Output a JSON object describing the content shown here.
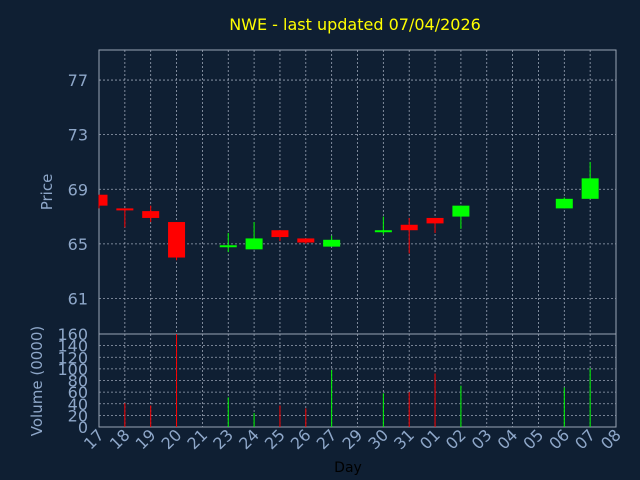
{
  "chart_data": {
    "type": "candlestick",
    "title": "NWE - last updated 07/04/2026",
    "colors": {
      "background": "#0f1f33",
      "up": "#00ff00",
      "down": "#ff0000",
      "grid": "#9aa4b5",
      "axis_text": "#8ea7c9",
      "title": "#ffff00"
    },
    "grid": true,
    "x_tick_labels": [
      "17",
      "18",
      "19",
      "20",
      "21",
      "23",
      "24",
      "25",
      "26",
      "27",
      "29",
      "30",
      "31",
      "01",
      "02",
      "03",
      "04",
      "05",
      "06",
      "07",
      "08"
    ],
    "xlabel": "Day",
    "price_panel": {
      "ylabel": "Price",
      "ylim": [
        58.4,
        79.2
      ],
      "yticks": [
        61,
        65,
        69,
        73,
        77
      ]
    },
    "volume_panel": {
      "ylabel": "Volume (0000)",
      "ylim": [
        0,
        160
      ],
      "yticks": [
        0,
        20,
        40,
        60,
        80,
        100,
        120,
        140,
        160
      ]
    },
    "candles": [
      {
        "x": "17",
        "open": 68.6,
        "high": 68.6,
        "low": 67.6,
        "close": 67.8,
        "volume": 0
      },
      {
        "x": "18",
        "open": 67.6,
        "high": 67.6,
        "low": 66.2,
        "close": 67.5,
        "volume": 41
      },
      {
        "x": "19",
        "open": 67.4,
        "high": 67.8,
        "low": 66.6,
        "close": 66.9,
        "volume": 37
      },
      {
        "x": "20",
        "open": 66.6,
        "high": 66.6,
        "low": 63.8,
        "close": 64.0,
        "volume": 160
      },
      {
        "x": "23",
        "open": 64.8,
        "high": 65.8,
        "low": 64.4,
        "close": 64.9,
        "volume": 51
      },
      {
        "x": "24",
        "open": 64.6,
        "high": 66.6,
        "low": 64.6,
        "close": 65.4,
        "volume": 24
      },
      {
        "x": "25",
        "open": 66.0,
        "high": 66.0,
        "low": 65.2,
        "close": 65.5,
        "volume": 37
      },
      {
        "x": "26",
        "open": 65.4,
        "high": 65.4,
        "low": 65.0,
        "close": 65.1,
        "volume": 32
      },
      {
        "x": "27",
        "open": 64.8,
        "high": 65.6,
        "low": 64.8,
        "close": 65.3,
        "volume": 98
      },
      {
        "x": "30",
        "open": 65.9,
        "high": 67.0,
        "low": 65.7,
        "close": 66.0,
        "volume": 58
      },
      {
        "x": "31",
        "open": 66.4,
        "high": 66.9,
        "low": 64.3,
        "close": 66.0,
        "volume": 60
      },
      {
        "x": "01",
        "open": 66.9,
        "high": 66.9,
        "low": 65.8,
        "close": 66.5,
        "volume": 92
      },
      {
        "x": "02",
        "open": 67.0,
        "high": 67.8,
        "low": 66.1,
        "close": 67.8,
        "volume": 71
      },
      {
        "x": "06",
        "open": 67.6,
        "high": 68.4,
        "low": 67.6,
        "close": 68.3,
        "volume": 68
      },
      {
        "x": "07",
        "open": 68.3,
        "high": 71.0,
        "low": 68.3,
        "close": 69.8,
        "volume": 101
      }
    ]
  }
}
